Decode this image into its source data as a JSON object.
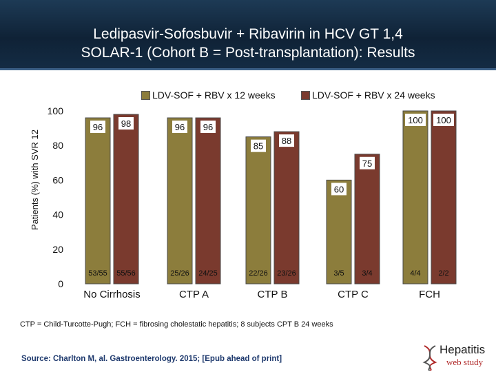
{
  "slide": {
    "title_line1": "Ledipasvir-Sofosbuvir + Ribavirin in HCV GT 1,4",
    "title_line2": "SOLAR-1 (Cohort B = Post-transplantation): Results",
    "footnote": "CTP = Child-Turcotte-Pugh; FCH = fibrosing cholestatic hepatitis;  8 subjects CPT B 24 weeks",
    "source": "Source: Charlton M, al. Gastroenterology. 2015; [Epub ahead of print]",
    "logo_name": "Hepatitis",
    "logo_sub": "web study",
    "logo_icon": "dna-helix-icon"
  },
  "chart_data": {
    "type": "bar",
    "ylabel": "Patients (%) with SVR 12",
    "ylim": [
      0,
      100
    ],
    "yticks": [
      0,
      20,
      40,
      60,
      80,
      100
    ],
    "grid": false,
    "legend_position": "top",
    "categories": [
      "No Cirrhosis",
      "CTP A",
      "CTP B",
      "CTP C",
      "FCH"
    ],
    "series": [
      {
        "name": "LDV-SOF + RBV x 12 weeks",
        "color": "#8c7d3c",
        "values": [
          96,
          96,
          85,
          60,
          100
        ],
        "value_labels": [
          "96",
          "96",
          "85",
          "60",
          "100"
        ],
        "fractions": [
          "53/55",
          "25/26",
          "22/26",
          "3/5",
          "4/4"
        ]
      },
      {
        "name": "LDV-SOF + RBV x 24 weeks",
        "color": "#7a3a2e",
        "values": [
          98,
          96,
          88,
          75,
          100
        ],
        "value_labels": [
          "98",
          "96",
          "88",
          "75",
          "100"
        ],
        "fractions": [
          "55/56",
          "24/25",
          "23/26",
          "3/4",
          "2/2"
        ]
      }
    ]
  }
}
